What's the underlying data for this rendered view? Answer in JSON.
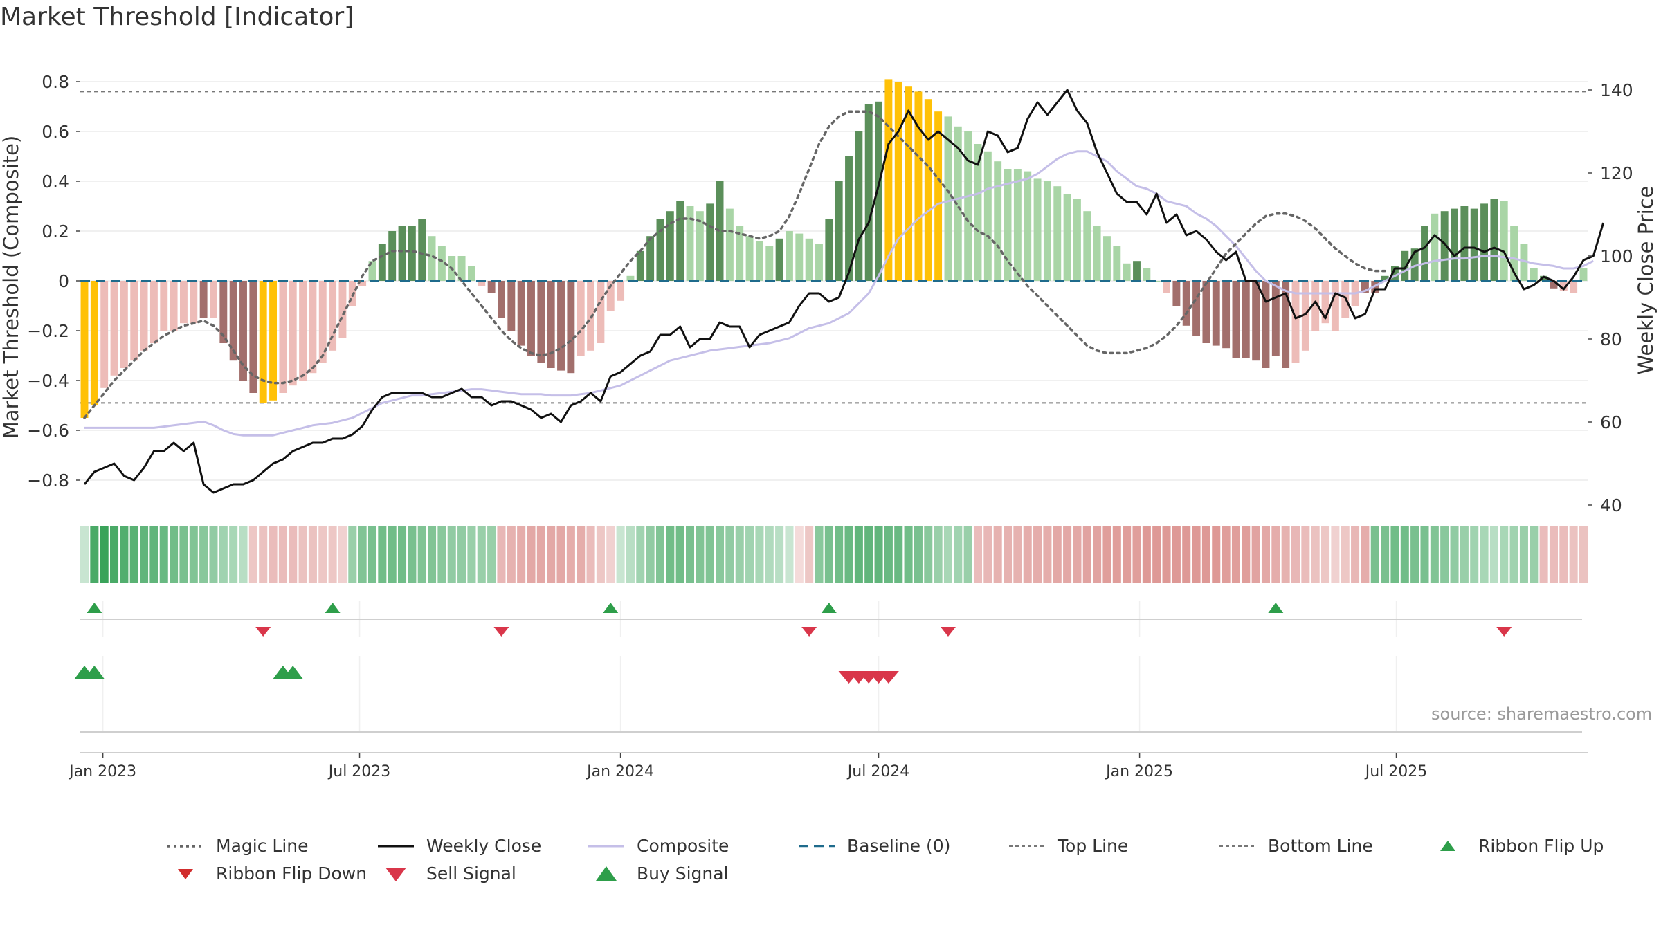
{
  "title": "Market Threshold [Indicator]",
  "source": "source: sharemaestro.com",
  "colors": {
    "bar_deep_green": "#5b8f5a",
    "bar_light_green": "#a9d5a6",
    "bar_deep_red": "#a26f6c",
    "bar_light_red": "#edbcb8",
    "bar_extreme": "#ffc107",
    "weekly_close": "#111111",
    "composite": "#c5bfe8",
    "magic_line": "#666666",
    "baseline": "#1f6b8c",
    "threshold_line": "#777777",
    "buy": "#2e9e4a",
    "sell": "#d9364a",
    "ribbon_green": "#3aa35a",
    "ribbon_red": "#d67f7c"
  },
  "chart_data": {
    "type": "bar+line",
    "x_start": "2022-12-19",
    "x_step_days": 7,
    "xtick_labels": [
      "Jan 2023",
      "Jul 2023",
      "Jan 2024",
      "Jul 2024",
      "Jan 2025",
      "Jul 2025"
    ],
    "xtick_dates": [
      "2023-01-01",
      "2023-07-01",
      "2024-01-01",
      "2024-07-01",
      "2025-01-01",
      "2025-07-01"
    ],
    "left_axis": {
      "label": "Market Threshold (Composite)",
      "ylim": [
        -0.9,
        0.85
      ],
      "ticks": [
        -0.8,
        -0.6,
        -0.4,
        -0.2,
        0,
        0.2,
        0.4,
        0.6,
        0.8
      ],
      "tick_labels": [
        "−0.8",
        "−0.6",
        "−0.4",
        "−0.2",
        "0",
        "0.2",
        "0.4",
        "0.6",
        "0.8"
      ]
    },
    "right_axis": {
      "label": "Weekly Close Price",
      "ylim": [
        40,
        145
      ],
      "ticks": [
        40,
        60,
        80,
        100,
        120,
        140
      ],
      "tick_labels": [
        "40",
        "60",
        "80",
        "100",
        "120",
        "140"
      ]
    },
    "top_line": 0.76,
    "bottom_line": -0.49,
    "baseline": 0,
    "composite_bars": [
      -0.55,
      -0.5,
      -0.43,
      -0.38,
      -0.35,
      -0.32,
      -0.28,
      -0.25,
      -0.2,
      -0.2,
      -0.17,
      -0.17,
      -0.15,
      -0.15,
      -0.25,
      -0.32,
      -0.4,
      -0.45,
      -0.49,
      -0.48,
      -0.45,
      -0.42,
      -0.4,
      -0.37,
      -0.33,
      -0.28,
      -0.23,
      -0.1,
      -0.02,
      0.08,
      0.15,
      0.2,
      0.22,
      0.22,
      0.25,
      0.18,
      0.14,
      0.1,
      0.1,
      0.06,
      -0.02,
      -0.05,
      -0.15,
      -0.2,
      -0.26,
      -0.3,
      -0.33,
      -0.35,
      -0.36,
      -0.37,
      -0.3,
      -0.28,
      -0.25,
      -0.12,
      -0.08,
      0.02,
      0.12,
      0.18,
      0.25,
      0.28,
      0.32,
      0.3,
      0.28,
      0.31,
      0.4,
      0.29,
      0.22,
      0.18,
      0.16,
      0.14,
      0.17,
      0.2,
      0.19,
      0.17,
      0.15,
      0.25,
      0.4,
      0.5,
      0.6,
      0.71,
      0.72,
      0.81,
      0.8,
      0.78,
      0.76,
      0.73,
      0.68,
      0.66,
      0.62,
      0.6,
      0.55,
      0.52,
      0.48,
      0.45,
      0.45,
      0.44,
      0.41,
      0.4,
      0.38,
      0.35,
      0.33,
      0.28,
      0.22,
      0.18,
      0.14,
      0.07,
      0.08,
      0.05,
      0,
      -0.05,
      -0.1,
      -0.18,
      -0.22,
      -0.25,
      -0.26,
      -0.27,
      -0.31,
      -0.31,
      -0.32,
      -0.35,
      -0.3,
      -0.35,
      -0.33,
      -0.28,
      -0.2,
      -0.17,
      -0.2,
      -0.15,
      -0.1,
      -0.05,
      -0.05,
      0.02,
      0.06,
      0.12,
      0.13,
      0.22,
      0.27,
      0.28,
      0.29,
      0.3,
      0.29,
      0.31,
      0.33,
      0.32,
      0.22,
      0.15,
      0.05,
      0.02,
      -0.03,
      -0.04,
      -0.05,
      0.05
    ],
    "bar_shades": [
      "X",
      "X",
      "L",
      "L",
      "L",
      "L",
      "L",
      "L",
      "L",
      "L",
      "L",
      "L",
      "D",
      "L",
      "D",
      "D",
      "D",
      "D",
      "X",
      "X",
      "L",
      "L",
      "L",
      "L",
      "L",
      "L",
      "L",
      "L",
      "L",
      "L",
      "D",
      "D",
      "D",
      "D",
      "D",
      "L",
      "L",
      "L",
      "L",
      "L",
      "L",
      "D",
      "D",
      "D",
      "D",
      "D",
      "D",
      "D",
      "D",
      "D",
      "L",
      "L",
      "L",
      "L",
      "L",
      "L",
      "D",
      "D",
      "D",
      "D",
      "D",
      "L",
      "L",
      "D",
      "D",
      "L",
      "L",
      "L",
      "L",
      "L",
      "D",
      "L",
      "L",
      "L",
      "L",
      "D",
      "D",
      "D",
      "D",
      "D",
      "D",
      "X",
      "X",
      "X",
      "X",
      "X",
      "X",
      "L",
      "L",
      "L",
      "L",
      "L",
      "L",
      "L",
      "L",
      "L",
      "L",
      "L",
      "L",
      "L",
      "L",
      "L",
      "L",
      "L",
      "L",
      "L",
      "D",
      "L",
      "L",
      "L",
      "D",
      "D",
      "D",
      "D",
      "D",
      "D",
      "D",
      "D",
      "D",
      "D",
      "D",
      "D",
      "L",
      "L",
      "L",
      "L",
      "L",
      "L",
      "L",
      "D",
      "D",
      "D",
      "D",
      "D",
      "D",
      "D",
      "L",
      "D",
      "D",
      "D",
      "D",
      "D",
      "D",
      "L",
      "L",
      "L",
      "L",
      "D",
      "D",
      "L"
    ],
    "series": [
      {
        "name": "Magic Line",
        "axis": "left",
        "style": "dotted",
        "values": [
          -0.55,
          -0.5,
          -0.45,
          -0.4,
          -0.36,
          -0.32,
          -0.28,
          -0.25,
          -0.22,
          -0.2,
          -0.18,
          -0.17,
          -0.16,
          -0.18,
          -0.22,
          -0.28,
          -0.34,
          -0.38,
          -0.4,
          -0.41,
          -0.41,
          -0.4,
          -0.38,
          -0.35,
          -0.3,
          -0.22,
          -0.14,
          -0.06,
          0.02,
          0.08,
          0.1,
          0.12,
          0.12,
          0.12,
          0.11,
          0.1,
          0.08,
          0.05,
          0.0,
          -0.05,
          -0.1,
          -0.15,
          -0.2,
          -0.24,
          -0.27,
          -0.29,
          -0.3,
          -0.29,
          -0.27,
          -0.24,
          -0.2,
          -0.15,
          -0.08,
          -0.02,
          0.03,
          0.08,
          0.12,
          0.17,
          0.2,
          0.23,
          0.25,
          0.25,
          0.24,
          0.22,
          0.2,
          0.2,
          0.19,
          0.18,
          0.17,
          0.18,
          0.2,
          0.26,
          0.35,
          0.45,
          0.55,
          0.62,
          0.66,
          0.68,
          0.68,
          0.68,
          0.66,
          0.62,
          0.58,
          0.54,
          0.5,
          0.46,
          0.41,
          0.36,
          0.3,
          0.24,
          0.2,
          0.18,
          0.14,
          0.08,
          0.03,
          -0.02,
          -0.06,
          -0.1,
          -0.14,
          -0.18,
          -0.22,
          -0.26,
          -0.28,
          -0.29,
          -0.29,
          -0.29,
          -0.28,
          -0.27,
          -0.25,
          -0.22,
          -0.18,
          -0.13,
          -0.07,
          -0.01,
          0.05,
          0.11,
          0.15,
          0.19,
          0.23,
          0.26,
          0.27,
          0.27,
          0.26,
          0.24,
          0.21,
          0.17,
          0.13,
          0.1,
          0.07,
          0.05,
          0.04,
          0.04
        ]
      },
      {
        "name": "Weekly Close",
        "axis": "right",
        "style": "solid",
        "values": [
          45,
          48,
          49,
          50,
          47,
          46,
          49,
          53,
          53,
          55,
          53,
          55,
          45,
          43,
          44,
          45,
          45,
          46,
          48,
          50,
          51,
          53,
          54,
          55,
          55,
          56,
          56,
          57,
          59,
          63,
          66,
          67,
          67,
          67,
          67,
          66,
          66,
          67,
          68,
          66,
          66,
          64,
          65,
          65,
          64,
          63,
          61,
          62,
          60,
          64,
          65,
          67,
          65,
          71,
          72,
          74,
          76,
          77,
          81,
          81,
          83,
          78,
          80,
          80,
          84,
          83,
          83,
          78,
          81,
          82,
          83,
          84,
          88,
          91,
          91,
          89,
          90,
          96,
          104,
          108,
          117,
          127,
          130,
          135,
          131,
          128,
          130,
          128,
          126,
          123,
          122,
          130,
          129,
          125,
          126,
          133,
          137,
          134,
          137,
          140,
          135,
          132,
          125,
          120,
          115,
          113,
          113,
          110,
          115,
          108,
          110,
          105,
          106,
          104,
          101,
          99,
          101,
          94,
          94,
          89,
          90,
          91,
          85,
          86,
          89,
          85,
          91,
          90,
          85,
          86,
          92,
          92,
          97,
          97,
          101,
          102,
          105,
          103,
          100,
          102,
          102,
          101,
          102,
          101,
          96,
          92,
          93,
          95,
          94,
          92,
          95,
          99,
          100,
          108
        ]
      },
      {
        "name": "Composite",
        "axis": "left",
        "style": "solid",
        "values": [
          -0.59,
          -0.59,
          -0.59,
          -0.59,
          -0.59,
          -0.59,
          -0.59,
          -0.59,
          -0.585,
          -0.58,
          -0.575,
          -0.57,
          -0.565,
          -0.58,
          -0.6,
          -0.615,
          -0.62,
          -0.62,
          -0.62,
          -0.62,
          -0.61,
          -0.6,
          -0.59,
          -0.58,
          -0.575,
          -0.57,
          -0.56,
          -0.55,
          -0.53,
          -0.51,
          -0.49,
          -0.48,
          -0.47,
          -0.46,
          -0.46,
          -0.455,
          -0.45,
          -0.445,
          -0.44,
          -0.435,
          -0.435,
          -0.44,
          -0.445,
          -0.45,
          -0.455,
          -0.455,
          -0.455,
          -0.46,
          -0.46,
          -0.46,
          -0.455,
          -0.45,
          -0.44,
          -0.43,
          -0.42,
          -0.4,
          -0.38,
          -0.36,
          -0.34,
          -0.32,
          -0.31,
          -0.3,
          -0.29,
          -0.28,
          -0.275,
          -0.27,
          -0.265,
          -0.26,
          -0.255,
          -0.25,
          -0.24,
          -0.23,
          -0.21,
          -0.19,
          -0.18,
          -0.17,
          -0.15,
          -0.13,
          -0.09,
          -0.05,
          0.02,
          0.1,
          0.17,
          0.21,
          0.25,
          0.28,
          0.31,
          0.32,
          0.33,
          0.34,
          0.35,
          0.37,
          0.38,
          0.39,
          0.4,
          0.41,
          0.43,
          0.46,
          0.49,
          0.51,
          0.52,
          0.52,
          0.5,
          0.48,
          0.44,
          0.41,
          0.38,
          0.37,
          0.35,
          0.32,
          0.31,
          0.3,
          0.27,
          0.25,
          0.22,
          0.18,
          0.14,
          0.09,
          0.04,
          0.0,
          -0.02,
          -0.04,
          -0.05,
          -0.05,
          -0.05,
          -0.05,
          -0.05,
          -0.05,
          -0.05,
          -0.04,
          -0.02,
          0.0,
          0.02,
          0.04,
          0.06,
          0.07,
          0.08,
          0.085,
          0.09,
          0.09,
          0.095,
          0.1,
          0.1,
          0.095,
          0.09,
          0.08,
          0.07,
          0.065,
          0.06,
          0.05,
          0.05,
          0.06,
          0.08
        ]
      }
    ],
    "ribbon_strength": [
      0.1,
      0.9,
      1,
      0.9,
      0.85,
      0.8,
      0.75,
      0.75,
      0.7,
      0.65,
      0.6,
      0.55,
      0.5,
      0.45,
      0.35,
      0.3,
      0.2,
      0.3,
      0.35,
      0.4,
      0.4,
      0.4,
      0.35,
      0.35,
      0.3,
      0.3,
      0.2,
      0.4,
      0.55,
      0.6,
      0.65,
      0.65,
      0.65,
      0.6,
      0.55,
      0.55,
      0.5,
      0.45,
      0.45,
      0.4,
      0.4,
      0.4,
      0.45,
      0.5,
      0.55,
      0.6,
      0.6,
      0.6,
      0.6,
      0.55,
      0.55,
      0.4,
      0.3,
      0.2,
      0.1,
      0.2,
      0.35,
      0.45,
      0.55,
      0.65,
      0.65,
      0.6,
      0.55,
      0.55,
      0.5,
      0.45,
      0.4,
      0.35,
      0.3,
      0.25,
      0.2,
      0.1,
      0.1,
      0.3,
      0.5,
      0.6,
      0.65,
      0.7,
      0.75,
      0.75,
      0.75,
      0.7,
      0.7,
      0.65,
      0.6,
      0.5,
      0.4,
      0.3,
      0.35,
      0.4,
      0.4,
      0.45,
      0.5,
      0.5,
      0.5,
      0.55,
      0.55,
      0.55,
      0.6,
      0.6,
      0.6,
      0.65,
      0.65,
      0.7,
      0.7,
      0.7,
      0.7,
      0.75,
      0.75,
      0.75,
      0.75,
      0.75,
      0.75,
      0.75,
      0.75,
      0.7,
      0.7,
      0.7,
      0.65,
      0.6,
      0.55,
      0.5,
      0.45,
      0.4,
      0.35,
      0.3,
      0.2,
      0.3,
      0.45,
      0.55,
      0.6,
      0.6,
      0.65,
      0.65,
      0.6,
      0.6,
      0.55,
      0.5,
      0.45,
      0.4,
      0.35,
      0.3,
      0.2,
      0.3,
      0.35,
      0.4,
      0.4,
      0.4,
      0.4,
      0.4,
      0.35,
      0.35
    ],
    "ribbon_sign": [
      1,
      1,
      1,
      1,
      1,
      1,
      1,
      1,
      1,
      1,
      1,
      1,
      1,
      1,
      1,
      1,
      1,
      -1,
      -1,
      -1,
      -1,
      -1,
      -1,
      -1,
      -1,
      -1,
      -1,
      1,
      1,
      1,
      1,
      1,
      1,
      1,
      1,
      1,
      1,
      1,
      1,
      1,
      1,
      1,
      -1,
      -1,
      -1,
      -1,
      -1,
      -1,
      -1,
      -1,
      -1,
      -1,
      -1,
      -1,
      1,
      1,
      1,
      1,
      1,
      1,
      1,
      1,
      1,
      1,
      1,
      1,
      1,
      1,
      1,
      1,
      1,
      1,
      -1,
      -1,
      1,
      1,
      1,
      1,
      1,
      1,
      1,
      1,
      1,
      1,
      1,
      1,
      1,
      1,
      1,
      1,
      -1,
      -1,
      -1,
      -1,
      -1,
      -1,
      -1,
      -1,
      -1,
      -1,
      -1,
      -1,
      -1,
      -1,
      -1,
      -1,
      -1,
      -1,
      -1,
      -1,
      -1,
      -1,
      -1,
      -1,
      -1,
      -1,
      -1,
      -1,
      -1,
      -1,
      -1,
      -1,
      -1,
      -1,
      -1,
      -1,
      -1,
      -1,
      -1,
      -1,
      1,
      1,
      1,
      1,
      1,
      1,
      1,
      1,
      1,
      1,
      1,
      1,
      1,
      1,
      1,
      1,
      1,
      -1,
      -1,
      -1,
      -1,
      -1
    ],
    "ribbon_flip_up_dates": [
      "2022-12-26",
      "2023-06-12",
      "2023-12-25",
      "2024-05-27",
      "2025-04-07"
    ],
    "ribbon_flip_down_dates": [
      "2023-04-24",
      "2023-10-09",
      "2024-05-13",
      "2024-08-19",
      "2025-09-15"
    ],
    "buy_signal_dates": [
      "2022-12-19",
      "2022-12-26",
      "2023-05-08",
      "2023-05-15"
    ],
    "sell_signal_dates": [
      "2024-06-10",
      "2024-06-17",
      "2024-06-24",
      "2024-07-01",
      "2024-07-08"
    ]
  },
  "legend": {
    "items": [
      {
        "label": "Magic Line",
        "kind": "dotted"
      },
      {
        "label": "Weekly Close",
        "kind": "solid-black"
      },
      {
        "label": "Composite",
        "kind": "solid-lavender"
      },
      {
        "label": "Baseline (0)",
        "kind": "dashed-blue"
      },
      {
        "label": "Top Line",
        "kind": "dotted-grey"
      },
      {
        "label": "Bottom Line",
        "kind": "dotted-grey"
      },
      {
        "label": "Ribbon Flip Up",
        "kind": "tri-up-small"
      },
      {
        "label": "Ribbon Flip Down",
        "kind": "tri-down-small"
      },
      {
        "label": "Sell Signal",
        "kind": "tri-down-large"
      },
      {
        "label": "Buy Signal",
        "kind": "tri-up-large"
      }
    ]
  }
}
